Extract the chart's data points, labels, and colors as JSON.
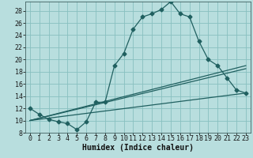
{
  "xlabel": "Humidex (Indice chaleur)",
  "background_color": "#b8dede",
  "grid_color": "#88c0c0",
  "line_color": "#206060",
  "xlim": [
    -0.5,
    23.5
  ],
  "ylim": [
    8,
    29.5
  ],
  "xticks": [
    0,
    1,
    2,
    3,
    4,
    5,
    6,
    7,
    8,
    9,
    10,
    11,
    12,
    13,
    14,
    15,
    16,
    17,
    18,
    19,
    20,
    21,
    22,
    23
  ],
  "yticks": [
    8,
    10,
    12,
    14,
    16,
    18,
    20,
    22,
    24,
    26,
    28
  ],
  "curve1_x": [
    0,
    1,
    2,
    3,
    4,
    5,
    6,
    7,
    8,
    9,
    10,
    11,
    12,
    13,
    14,
    15,
    16,
    17,
    18,
    19,
    20,
    21,
    22,
    23
  ],
  "curve1_y": [
    12,
    11,
    10.2,
    9.8,
    9.5,
    8.5,
    9.8,
    13,
    13,
    19,
    21,
    25,
    27,
    27.5,
    28.2,
    29.5,
    27.5,
    27,
    23,
    20,
    19,
    17,
    15,
    14.5
  ],
  "curve2_x": [
    0,
    23
  ],
  "curve2_y": [
    10,
    19
  ],
  "curve3_x": [
    0,
    23
  ],
  "curve3_y": [
    10,
    14.5
  ],
  "curve4_x": [
    0,
    23
  ],
  "curve4_y": [
    10,
    18.5
  ],
  "font_size_label": 7,
  "font_size_tick": 6,
  "marker": "D",
  "marker_size": 2.5,
  "linewidth": 0.9
}
